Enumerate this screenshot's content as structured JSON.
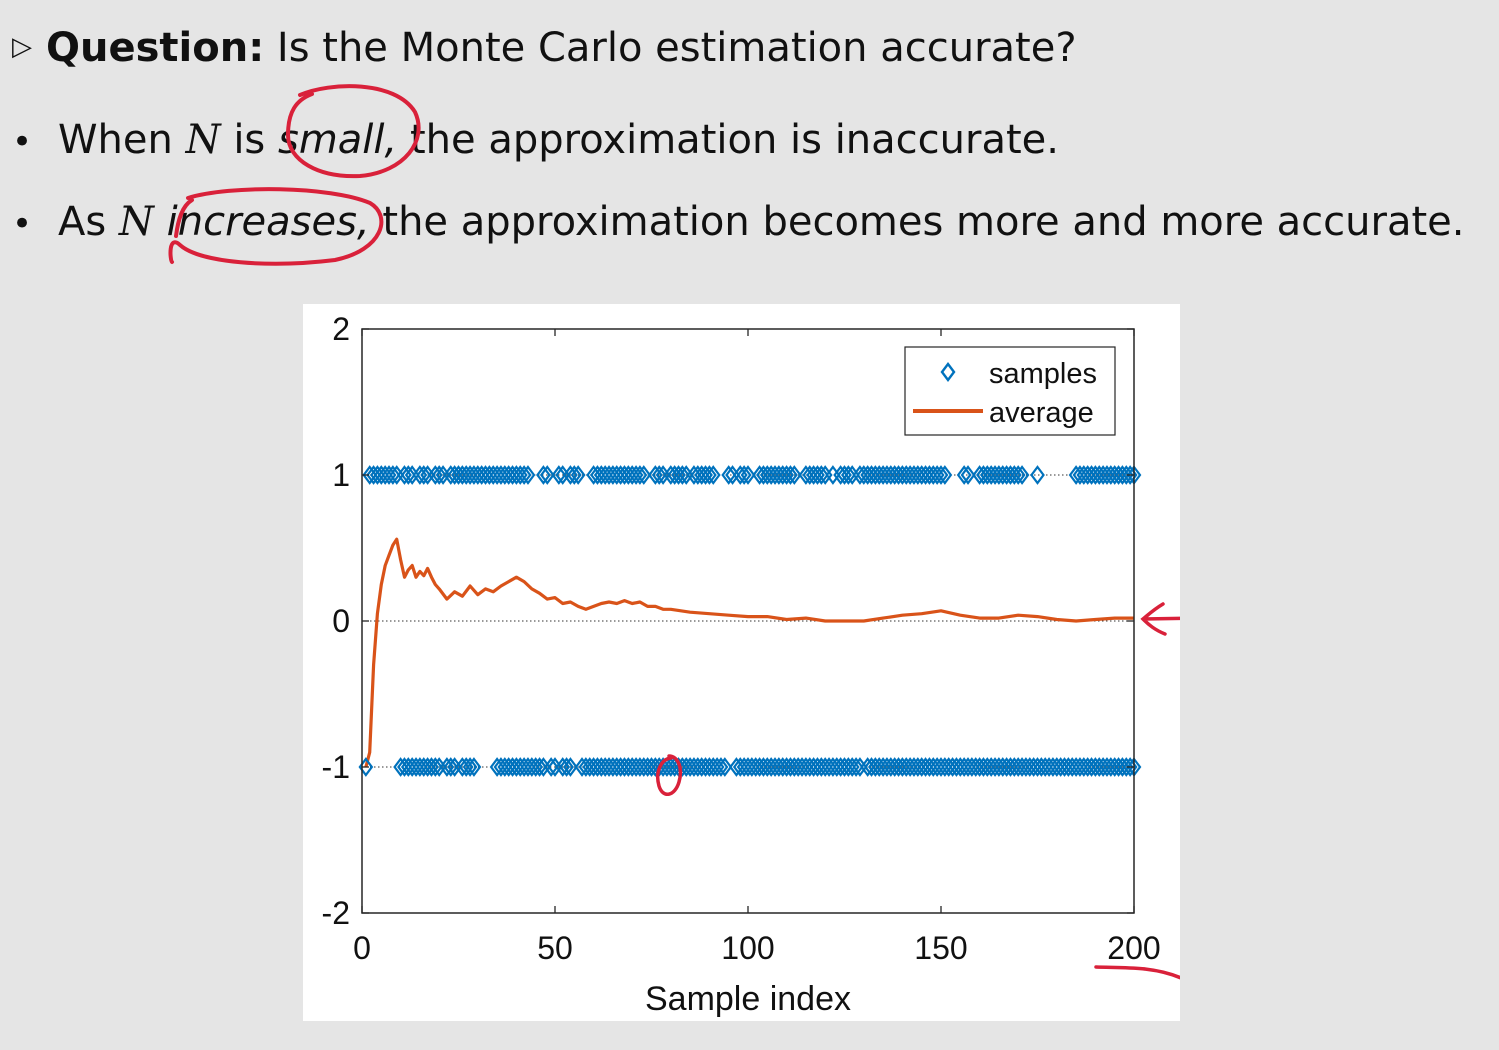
{
  "slide": {
    "question_marker": "▷",
    "question_label": "Question:",
    "question_text": "Is the Monte Carlo estimation accurate?",
    "bullets": [
      {
        "symbol": "•",
        "pre": "When",
        "var": "N",
        "mid": "is",
        "emph": "small,",
        "post": "the approximation is inaccurate."
      },
      {
        "symbol": "•",
        "pre": "As",
        "var": "N",
        "mid": "",
        "emph": "increases,",
        "post": "the approximation becomes more and more accurate."
      }
    ]
  },
  "chart_data": {
    "type": "scatter",
    "xlabel": "Sample index",
    "ylabel": "",
    "xlim": [
      0,
      200
    ],
    "ylim": [
      -2,
      2
    ],
    "xticks": [
      "0",
      "50",
      "100",
      "150",
      "200"
    ],
    "yticks": [
      "2",
      "1",
      "0",
      "-1",
      "-2"
    ],
    "xtick_values": [
      0,
      50,
      100,
      150,
      200
    ],
    "ytick_values": [
      2,
      1,
      0,
      -1,
      -2
    ],
    "legend": {
      "position": "top-right",
      "entries": [
        "samples",
        "average"
      ]
    },
    "colors": {
      "samples": "#0072bd",
      "average": "#d95319",
      "ink": "#d9213a"
    },
    "reference_lines": [
      1,
      0,
      -1
    ],
    "series": [
      {
        "name": "samples",
        "marker": "diamond",
        "x_at_plus1": [
          2,
          3,
          4,
          5,
          6,
          7,
          8,
          9,
          11,
          12,
          13,
          15,
          16,
          17,
          19,
          20,
          21,
          23,
          24,
          25,
          26,
          27,
          28,
          29,
          30,
          31,
          32,
          33,
          34,
          35,
          36,
          37,
          38,
          39,
          40,
          41,
          42,
          43,
          47,
          48,
          51,
          52,
          54,
          55,
          56,
          60,
          61,
          62,
          63,
          64,
          65,
          66,
          67,
          68,
          69,
          70,
          71,
          72,
          73,
          76,
          77,
          78,
          80,
          81,
          82,
          83,
          84,
          86,
          87,
          88,
          89,
          90,
          91,
          95,
          96,
          98,
          99,
          100,
          103,
          104,
          105,
          106,
          107,
          108,
          109,
          110,
          111,
          112,
          115,
          116,
          117,
          118,
          119,
          120,
          122,
          124,
          125,
          126,
          127,
          129,
          130,
          131,
          132,
          133,
          134,
          135,
          136,
          137,
          138,
          139,
          140,
          141,
          142,
          143,
          144,
          145,
          146,
          147,
          148,
          149,
          150,
          151,
          156,
          157,
          160,
          161,
          162,
          163,
          164,
          165,
          166,
          167,
          168,
          169,
          170,
          171,
          175,
          185,
          186,
          187,
          188,
          189,
          190,
          191,
          192,
          193,
          194,
          195,
          196,
          197,
          198,
          199,
          200
        ],
        "x_at_minus1": [
          1,
          10,
          11,
          12,
          13,
          14,
          15,
          16,
          17,
          18,
          19,
          20,
          22,
          23,
          24,
          26,
          27,
          28,
          29,
          35,
          36,
          37,
          38,
          39,
          40,
          41,
          42,
          43,
          44,
          45,
          46,
          47,
          49,
          50,
          52,
          53,
          54,
          57,
          58,
          59,
          60,
          61,
          62,
          63,
          64,
          65,
          66,
          67,
          68,
          69,
          70,
          71,
          72,
          73,
          74,
          75,
          76,
          77,
          78,
          79,
          80,
          81,
          82,
          83,
          84,
          85,
          86,
          87,
          88,
          89,
          90,
          91,
          92,
          93,
          94,
          97,
          98,
          99,
          100,
          101,
          102,
          103,
          104,
          105,
          106,
          107,
          108,
          109,
          110,
          111,
          112,
          113,
          114,
          115,
          116,
          117,
          118,
          119,
          120,
          121,
          122,
          123,
          124,
          125,
          126,
          127,
          128,
          129,
          131,
          132,
          133,
          134,
          135,
          136,
          137,
          138,
          139,
          140,
          141,
          142,
          143,
          144,
          145,
          146,
          147,
          148,
          149,
          150,
          151,
          152,
          153,
          154,
          155,
          156,
          157,
          158,
          159,
          160,
          161,
          162,
          163,
          164,
          165,
          166,
          167,
          168,
          169,
          170,
          171,
          172,
          173,
          174,
          175,
          176,
          177,
          178,
          179,
          180,
          181,
          182,
          183,
          184,
          185,
          186,
          187,
          188,
          189,
          190,
          191,
          192,
          193,
          194,
          195,
          196,
          197,
          198,
          199,
          200
        ]
      },
      {
        "name": "average",
        "x": [
          1,
          2,
          3,
          4,
          5,
          6,
          7,
          8,
          9,
          10,
          11,
          12,
          13,
          14,
          15,
          16,
          17,
          18,
          19,
          20,
          22,
          24,
          26,
          28,
          30,
          32,
          34,
          36,
          38,
          40,
          42,
          44,
          46,
          48,
          50,
          52,
          54,
          56,
          58,
          60,
          62,
          64,
          66,
          68,
          70,
          72,
          74,
          76,
          78,
          80,
          85,
          90,
          95,
          100,
          105,
          110,
          115,
          120,
          125,
          130,
          135,
          140,
          145,
          150,
          155,
          160,
          165,
          170,
          175,
          180,
          185,
          190,
          195,
          200
        ],
        "y": [
          -1.0,
          -0.9,
          -0.3,
          0.05,
          0.25,
          0.38,
          0.45,
          0.52,
          0.56,
          0.42,
          0.3,
          0.35,
          0.38,
          0.3,
          0.34,
          0.31,
          0.36,
          0.3,
          0.25,
          0.22,
          0.15,
          0.2,
          0.17,
          0.24,
          0.18,
          0.22,
          0.2,
          0.24,
          0.27,
          0.3,
          0.27,
          0.22,
          0.19,
          0.15,
          0.16,
          0.12,
          0.13,
          0.1,
          0.08,
          0.1,
          0.12,
          0.13,
          0.12,
          0.14,
          0.12,
          0.13,
          0.1,
          0.1,
          0.08,
          0.08,
          0.06,
          0.05,
          0.04,
          0.03,
          0.03,
          0.01,
          0.02,
          0.0,
          0.0,
          0.0,
          0.02,
          0.04,
          0.05,
          0.07,
          0.04,
          0.02,
          0.02,
          0.04,
          0.03,
          0.01,
          0.0,
          0.01,
          0.02,
          0.02
        ]
      }
    ]
  }
}
